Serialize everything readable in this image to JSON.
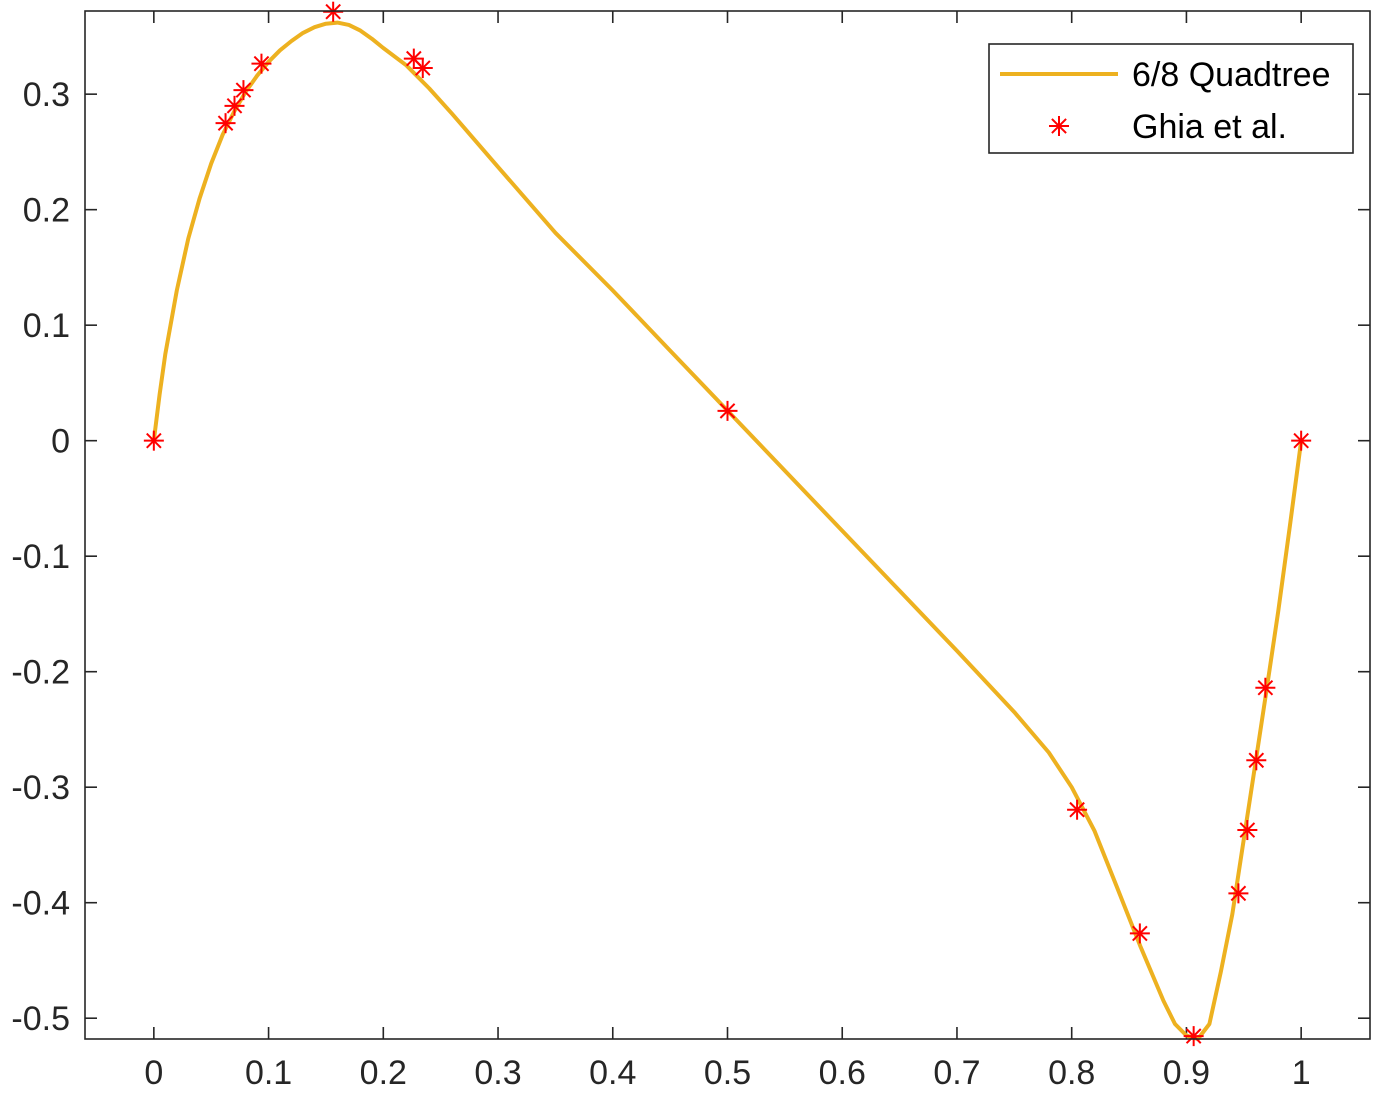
{
  "chart_data": {
    "type": "line",
    "title": "",
    "xlabel": "",
    "ylabel": "",
    "xlim": [
      -0.06,
      1.06
    ],
    "ylim": [
      -0.518,
      0.372
    ],
    "xticks": [
      "0",
      "0.1",
      "0.2",
      "0.3",
      "0.4",
      "0.5",
      "0.6",
      "0.7",
      "0.8",
      "0.9",
      "1"
    ],
    "yticks": [
      "-0.5",
      "-0.4",
      "-0.3",
      "-0.2",
      "-0.1",
      "0",
      "0.1",
      "0.2",
      "0.3"
    ],
    "grid": false,
    "legend_position": "top-right",
    "series": [
      {
        "name": "6/8 Quadtree",
        "kind": "line",
        "color": "#EDB120",
        "x": [
          0,
          0.005,
          0.01,
          0.02,
          0.03,
          0.04,
          0.05,
          0.06,
          0.07,
          0.08,
          0.09,
          0.1,
          0.11,
          0.12,
          0.13,
          0.14,
          0.15,
          0.16,
          0.17,
          0.18,
          0.19,
          0.2,
          0.22,
          0.24,
          0.26,
          0.28,
          0.3,
          0.35,
          0.4,
          0.45,
          0.5,
          0.55,
          0.6,
          0.65,
          0.7,
          0.75,
          0.78,
          0.8,
          0.82,
          0.84,
          0.86,
          0.88,
          0.89,
          0.9,
          0.91,
          0.92,
          0.93,
          0.94,
          0.95,
          0.96,
          0.97,
          0.98,
          0.99,
          1.0
        ],
        "y": [
          0,
          0.04,
          0.075,
          0.13,
          0.175,
          0.21,
          0.24,
          0.265,
          0.285,
          0.302,
          0.316,
          0.328,
          0.338,
          0.346,
          0.353,
          0.358,
          0.361,
          0.362,
          0.36,
          0.355,
          0.348,
          0.34,
          0.325,
          0.305,
          0.283,
          0.26,
          0.237,
          0.18,
          0.13,
          0.078,
          0.026,
          -0.026,
          -0.078,
          -0.13,
          -0.182,
          -0.235,
          -0.27,
          -0.3,
          -0.338,
          -0.388,
          -0.438,
          -0.485,
          -0.505,
          -0.515,
          -0.518,
          -0.505,
          -0.46,
          -0.41,
          -0.345,
          -0.28,
          -0.215,
          -0.148,
          -0.075,
          0
        ]
      },
      {
        "name": "Ghia et al.",
        "kind": "scatter",
        "marker": "asterisk",
        "color": "#FF0000",
        "x": [
          0,
          0.0625,
          0.0703,
          0.0781,
          0.0938,
          0.1563,
          0.2266,
          0.2344,
          0.5,
          0.8047,
          0.8594,
          0.9063,
          0.9453,
          0.9531,
          0.9609,
          0.9688,
          1.0
        ],
        "y": [
          0,
          0.2749,
          0.2899,
          0.3035,
          0.3264,
          0.3714,
          0.3308,
          0.3226,
          0.0258,
          -0.3195,
          -0.4266,
          -0.5155,
          -0.3919,
          -0.3371,
          -0.2767,
          -0.2139,
          0
        ]
      }
    ]
  }
}
